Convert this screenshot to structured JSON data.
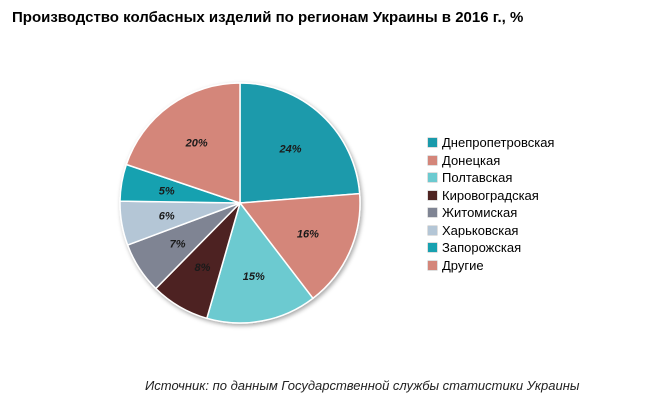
{
  "title": "Производство  колбасных  изделий  по регионам  Украины в 2016 г., %",
  "source": "Источник: по данным Государственной службы статистики Украины",
  "chart_data": {
    "type": "pie",
    "title": "Производство  колбасных  изделий  по регионам  Украины в 2016 г., %",
    "legend_position": "right",
    "slices": [
      {
        "label": "Днепропетровская",
        "value": 24,
        "value_label": "24%",
        "color": "#1a9aab"
      },
      {
        "label": "Донецкая",
        "value": 16,
        "value_label": "16%",
        "color": "#d4867a"
      },
      {
        "label": "Полтавская",
        "value": 15,
        "value_label": "15%",
        "color": "#6ccad0"
      },
      {
        "label": "Кировоградская",
        "value": 8,
        "value_label": "8%",
        "color": "#4e2421"
      },
      {
        "label": "Житомиская",
        "value": 7,
        "value_label": "7%",
        "color": "#7f8493"
      },
      {
        "label": "Харьковская",
        "value": 6,
        "value_label": "6%",
        "color": "#b4c6d6"
      },
      {
        "label": "Запорожская",
        "value": 5,
        "value_label": "5%",
        "color": "#18a1b0"
      },
      {
        "label": "Другие",
        "value": 20,
        "value_label": "20%",
        "color": "#d4867a"
      }
    ]
  }
}
